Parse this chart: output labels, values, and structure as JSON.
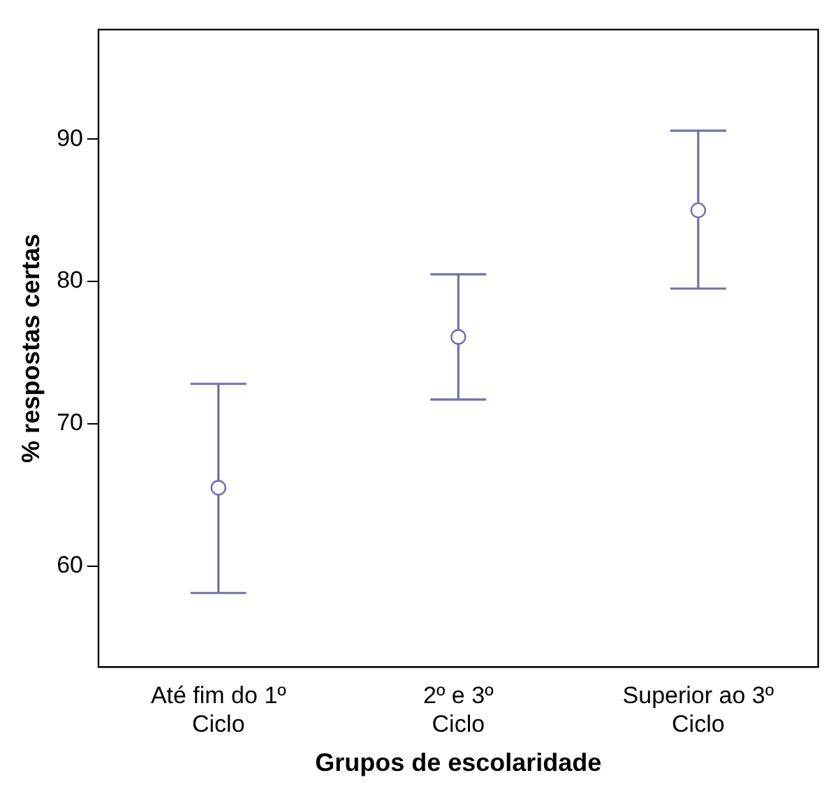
{
  "chart_data": {
    "type": "scatter",
    "xlabel": "Grupos de escolaridade",
    "ylabel": "% respostas certas",
    "categories": [
      "Até fim do 1º Ciclo",
      "2º e 3º Ciclo",
      "Superior ao 3º Ciclo"
    ],
    "series": [
      {
        "color": "#7070a8",
        "values": [
          65.5,
          76.1,
          85.0
        ],
        "errors": [
          [
            58.1,
            72.8
          ],
          [
            71.7,
            80.5
          ],
          [
            79.5,
            90.6
          ]
        ]
      }
    ],
    "ylim": [
      52.9,
      97.7
    ],
    "yticks": [
      60,
      70,
      80,
      90
    ],
    "grid": false,
    "legend": false,
    "marker": "circle"
  }
}
